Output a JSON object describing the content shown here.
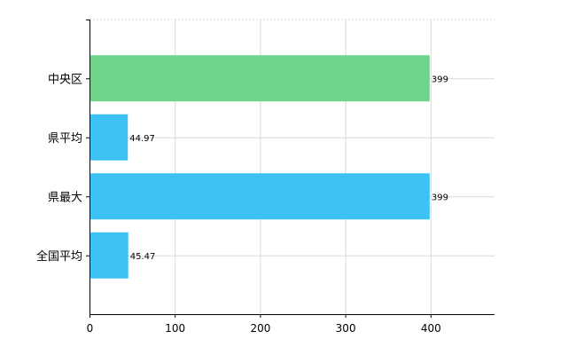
{
  "chart_data": {
    "type": "bar",
    "orientation": "horizontal",
    "categories": [
      "中央区",
      "県平均",
      "県最大",
      "全国平均"
    ],
    "values": [
      399,
      44.97,
      399,
      45.47
    ],
    "data_labels": [
      "399",
      "44.97",
      "399",
      "45.47"
    ],
    "bar_colors": [
      "#6fd38c",
      "#3ec2f4",
      "#3ec2f4",
      "#3ec2f4"
    ],
    "xlim": [
      0,
      475
    ],
    "xticks": [
      0,
      100,
      200,
      300,
      400
    ],
    "grid": true,
    "title": "",
    "xlabel": "",
    "ylabel": ""
  }
}
